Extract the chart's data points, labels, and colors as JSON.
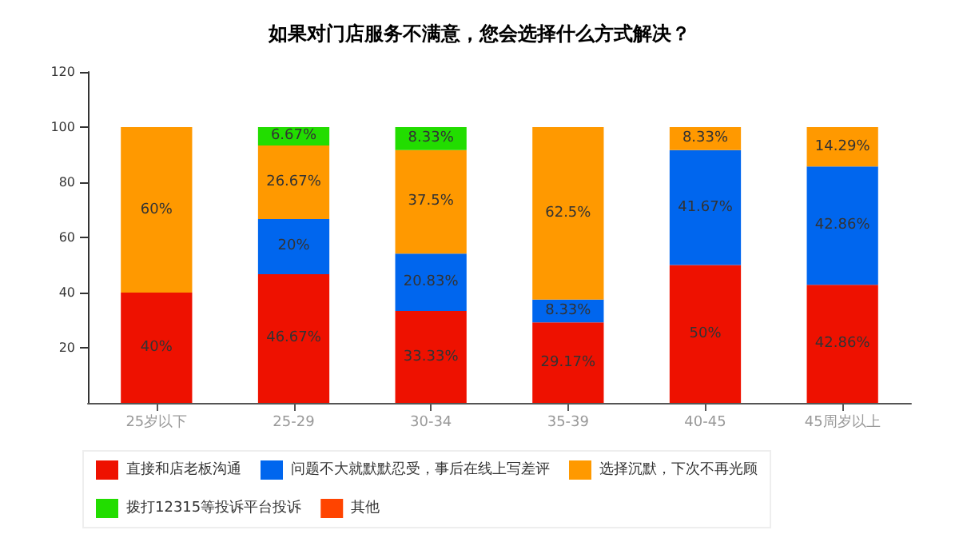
{
  "chart_data": {
    "type": "bar",
    "stacked": true,
    "title": "如果对门店服务不满意，您会选择什么方式解决？",
    "categories": [
      "25岁以下",
      "25-29",
      "30-34",
      "35-39",
      "40-45",
      "45周岁以上"
    ],
    "ylim": [
      0,
      120
    ],
    "yticks": [
      20,
      40,
      60,
      80,
      100,
      120
    ],
    "grid": false,
    "legend": "bottom",
    "series": [
      {
        "name": "直接和店老板沟通",
        "color": "#ee1100",
        "values": [
          40,
          46.67,
          33.33,
          29.17,
          50,
          42.86
        ],
        "value_labels": [
          "40%",
          "46.67%",
          "33.33%",
          "29.17%",
          "50%",
          "42.86%"
        ]
      },
      {
        "name": "问题不大就默默忍受，事后在线上写差评",
        "color": "#0066ee",
        "values": [
          null,
          20,
          20.83,
          8.33,
          41.67,
          42.86
        ],
        "value_labels": [
          null,
          "20%",
          "20.83%",
          "8.33%",
          "41.67%",
          "42.86%"
        ]
      },
      {
        "name": "选择沉默，下次不再光顾",
        "color": "#ff9900",
        "values": [
          60,
          26.67,
          37.5,
          62.5,
          8.33,
          14.29
        ],
        "value_labels": [
          "60%",
          "26.67%",
          "37.5%",
          "62.5%",
          "8.33%",
          "14.29%"
        ]
      },
      {
        "name": "拨打12315等投诉平台投诉",
        "color": "#22dd00",
        "values": [
          null,
          6.67,
          8.33,
          null,
          null,
          null
        ],
        "value_labels": [
          null,
          "6.67%",
          "8.33%",
          null,
          null,
          null
        ]
      },
      {
        "name": "其他",
        "color": "#ff4400",
        "values": [
          null,
          null,
          null,
          null,
          null,
          null
        ]
      }
    ]
  }
}
